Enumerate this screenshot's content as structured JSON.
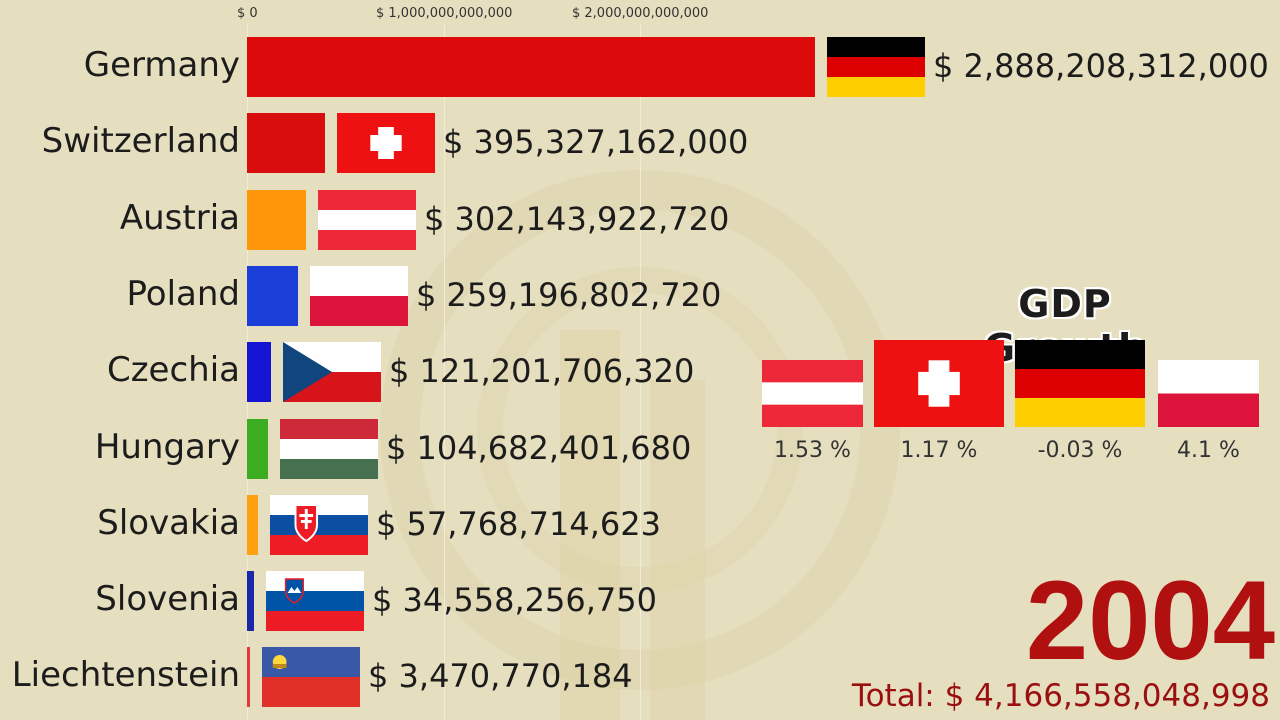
{
  "chart_data": {
    "type": "bar",
    "orientation": "horizontal",
    "currency_prefix": "$ ",
    "axis_tick_labels": [
      "$ 0",
      "$ 1,000,000,000,000",
      "$ 2,000,000,000,000"
    ],
    "axis_ticks": [
      0,
      1000000000000,
      2000000000000
    ],
    "categories": [
      "Germany",
      "Switzerland",
      "Austria",
      "Poland",
      "Czechia",
      "Hungary",
      "Slovakia",
      "Slovenia",
      "Liechtenstein"
    ],
    "values": [
      2888208312000,
      395327162000,
      302143922720,
      259196802720,
      121201706320,
      104682401680,
      57768714623,
      34558256750,
      3470770184
    ],
    "value_labels": [
      "$ 2,888,208,312,000",
      "$ 395,327,162,000",
      "$ 302,143,922,720",
      "$ 259,196,802,720",
      "$ 121,201,706,320",
      "$ 104,682,401,680",
      "$ 57,768,714,623",
      "$ 34,558,256,750",
      "$ 3,470,770,184"
    ],
    "bar_colors": [
      "#dc0a0a",
      "#d90d0d",
      "#ff9608",
      "#1c3ed8",
      "#1414d2",
      "#3cac22",
      "#ffa010",
      "#1828a8",
      "#e23a3a"
    ],
    "flags": [
      "germany-flag",
      "switzerland-flag",
      "austria-flag",
      "poland-flag",
      "czechia-flag",
      "hungary-flag",
      "slovakia-flag",
      "slovenia-flag",
      "liechtenstein-flag"
    ],
    "grid": true
  },
  "growth_panel": {
    "title": "GDP Growth",
    "items": [
      {
        "flag": "austria-flag",
        "value": "1.53 %"
      },
      {
        "flag": "switzerland-flag",
        "value": "1.17 %"
      },
      {
        "flag": "germany-flag",
        "value": "-0.03 %"
      },
      {
        "flag": "poland-flag",
        "value": "4.1 %"
      }
    ]
  },
  "year": "2004",
  "total_label": "Total: $ 4,166,558,048,998",
  "colors": {
    "background": "#e6dfbf",
    "year": "#b01010",
    "total": "#9a1010"
  }
}
